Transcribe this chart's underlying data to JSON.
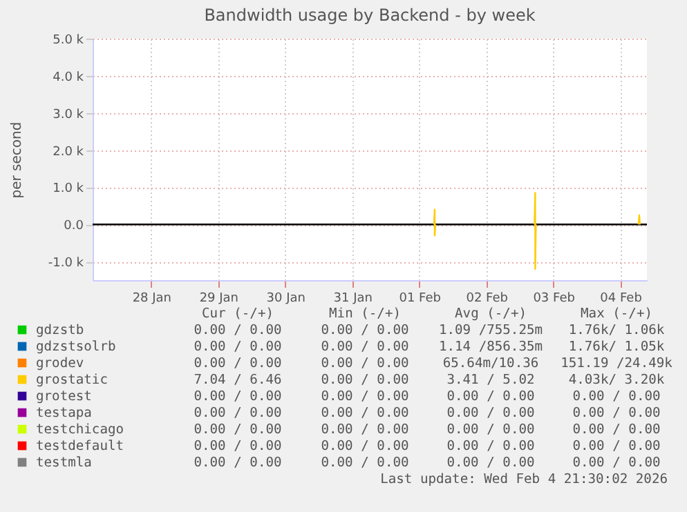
{
  "chart_data": {
    "type": "line",
    "title": "Bandwidth usage by Backend - by week",
    "ylabel": "per second",
    "xlim": [
      "2026-01-27T15:00",
      "2026-02-04T21:30"
    ],
    "xticks": [
      {
        "value": "2026-01-28T12:00",
        "label": "28 Jan"
      },
      {
        "value": "2026-01-29T12:00",
        "label": "29 Jan"
      },
      {
        "value": "2026-01-30T12:00",
        "label": "30 Jan"
      },
      {
        "value": "2026-01-31T12:00",
        "label": "31 Jan"
      },
      {
        "value": "2026-02-01T12:00",
        "label": "01 Feb"
      },
      {
        "value": "2026-02-02T12:00",
        "label": "02 Feb"
      },
      {
        "value": "2026-02-03T12:00",
        "label": "03 Feb"
      },
      {
        "value": "2026-02-04T12:00",
        "label": "04 Feb"
      }
    ],
    "ylim": [
      -1500,
      5000
    ],
    "yticks": [
      {
        "value": -1000,
        "label": "-1.0 k"
      },
      {
        "value": 0,
        "label": "0.0"
      },
      {
        "value": 1000,
        "label": "1.0 k"
      },
      {
        "value": 2000,
        "label": "2.0 k"
      },
      {
        "value": 3000,
        "label": "3.0 k"
      },
      {
        "value": 4000,
        "label": "4.0 k"
      },
      {
        "value": 5000,
        "label": "5.0 k"
      }
    ],
    "grid": true,
    "legend": "bottom",
    "marker": "none",
    "line_style": "solid",
    "ref_lines": [
      {
        "axis": "y",
        "value": 0,
        "color": "#000000"
      }
    ],
    "series": [
      {
        "name": "gdzstb",
        "color": "#00cc00"
      },
      {
        "name": "gdzstsolrb",
        "color": "#0066b3"
      },
      {
        "name": "grodev",
        "color": "#ff8000"
      },
      {
        "name": "grostatic",
        "color": "#ffcc00",
        "x": [
          "2026-02-01T17:15",
          "2026-02-01T17:30",
          "2026-02-01T17:30",
          "2026-02-01T17:45",
          "2026-02-03T05:00",
          "2026-02-03T05:15",
          "2026-02-03T05:30",
          "2026-02-03T05:30",
          "2026-02-03T05:45",
          "2026-02-04T18:15",
          "2026-02-04T18:30",
          "2026-02-04T18:45",
          "2026-02-04T19:00"
        ],
        "values": [
          0,
          400,
          -300,
          0,
          null,
          0,
          850,
          -1200,
          0,
          null,
          0,
          250,
          0
        ]
      },
      {
        "name": "grotest",
        "color": "#330099"
      },
      {
        "name": "testapa",
        "color": "#990099"
      },
      {
        "name": "testchicago",
        "color": "#ccff00"
      },
      {
        "name": "testdefault",
        "color": "#ff0000"
      },
      {
        "name": "testmla",
        "color": "#808080"
      }
    ],
    "annotations": [
      "Cur (-/+)",
      "Min (-/+)",
      "Avg (-/+)",
      "Max (-/+)",
      "0.00 / 0.00",
      "0.00 / 0.00",
      "1.09 /755.25m",
      "1.76k/ 1.06k",
      "0.00 / 0.00",
      "0.00 / 0.00",
      "1.14 /856.35m",
      "1.76k/ 1.05k",
      "0.00 / 0.00",
      "0.00 / 0.00",
      "65.64m/10.36",
      "151.19 /24.49k",
      "7.04 / 6.46",
      "0.00 / 0.00",
      "3.41 / 5.02",
      "4.03k/ 3.20k",
      "0.00 / 0.00",
      "0.00 / 0.00",
      "0.00 / 0.00",
      "0.00 / 0.00",
      "0.00 / 0.00",
      "0.00 / 0.00",
      "0.00 / 0.00",
      "0.00 / 0.00",
      "0.00 / 0.00",
      "0.00 / 0.00",
      "0.00 / 0.00",
      "0.00 / 0.00",
      "0.00 / 0.00",
      "0.00 / 0.00",
      "0.00 / 0.00",
      "0.00 / 0.00",
      "0.00 / 0.00",
      "0.00 / 0.00",
      "0.00 / 0.00",
      "0.00 / 0.00",
      "Last update: Wed Feb  4 21:30:02 2026"
    ]
  }
}
